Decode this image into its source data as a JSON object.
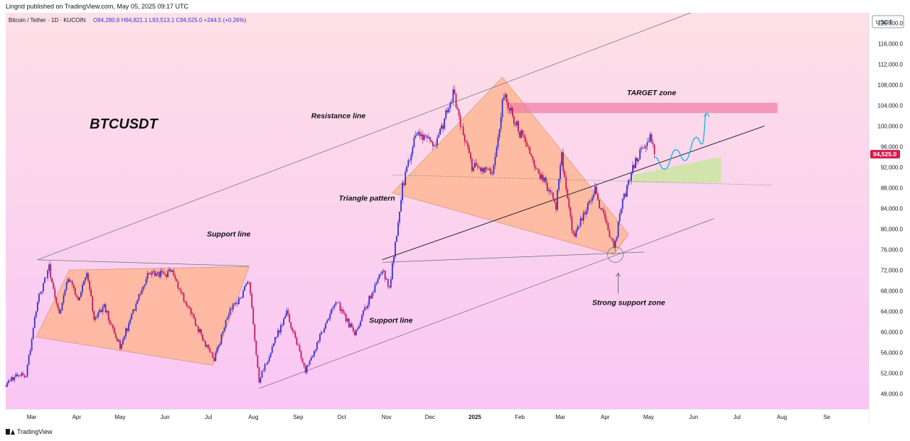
{
  "header": {
    "published": "Lingrid published on TradingView.com, May 05, 2025 09:17 UTC"
  },
  "colors": {
    "up": "#3a2fd1",
    "down": "#c2185b",
    "price_badge": "#d81b4c",
    "triangle_fill": "#ffb38a",
    "target_fill": "#f07aa6",
    "green_zone": "#c8e6a0",
    "projection": "#19b7e6",
    "bg_top": "#fde0e6",
    "bg_bottom": "#f9c6f5"
  },
  "chart_data": {
    "type": "candlestick",
    "symbol_line": "Bitcoin / Tether · 1D · KUCOIN",
    "ohlc_line": "O94,280.6  H94,821.1  L93,513.1  C94,525.0  +244.5 (+0.26%)",
    "currency": "USDT",
    "last_price": "94,525.0",
    "ylim": [
      45000,
      122000
    ],
    "xlim": [
      "2024-02-12",
      "2025-09-30"
    ],
    "y_ticks": [
      "120,000.0",
      "116,000.0",
      "112,000.0",
      "108,000.0",
      "104,000.0",
      "100,000.0",
      "96,000.0",
      "92,000.0",
      "88,000.0",
      "84,000.0",
      "80,000.0",
      "76,000.0",
      "72,000.0",
      "68,000.0",
      "64,000.0",
      "60,000.0",
      "56,000.0",
      "52,000.0",
      "48,000.0"
    ],
    "x_ticks": [
      {
        "label": "Mar",
        "date": "2024-03-01"
      },
      {
        "label": "Apr",
        "date": "2024-04-01"
      },
      {
        "label": "May",
        "date": "2024-05-01"
      },
      {
        "label": "Jun",
        "date": "2024-06-01"
      },
      {
        "label": "Jul",
        "date": "2024-07-01"
      },
      {
        "label": "Aug",
        "date": "2024-08-01"
      },
      {
        "label": "Sep",
        "date": "2024-09-01"
      },
      {
        "label": "Oct",
        "date": "2024-10-01"
      },
      {
        "label": "Nov",
        "date": "2024-11-01"
      },
      {
        "label": "Dec",
        "date": "2024-12-01"
      },
      {
        "label": "2025",
        "date": "2025-01-01"
      },
      {
        "label": "Feb",
        "date": "2025-02-01"
      },
      {
        "label": "Mar",
        "date": "2025-03-01"
      },
      {
        "label": "Apr",
        "date": "2025-04-01"
      },
      {
        "label": "May",
        "date": "2025-05-01"
      },
      {
        "label": "Jun",
        "date": "2025-06-01"
      },
      {
        "label": "Jul",
        "date": "2025-07-01"
      },
      {
        "label": "Aug",
        "date": "2025-08-01"
      },
      {
        "label": "Se",
        "date": "2025-09-01"
      }
    ],
    "price_path": [
      [
        "2024-02-12",
        49500
      ],
      [
        "2024-02-20",
        51800
      ],
      [
        "2024-02-26",
        51500
      ],
      [
        "2024-03-05",
        66000
      ],
      [
        "2024-03-13",
        72500
      ],
      [
        "2024-03-20",
        63000
      ],
      [
        "2024-03-26",
        70500
      ],
      [
        "2024-04-02",
        65800
      ],
      [
        "2024-04-08",
        71500
      ],
      [
        "2024-04-13",
        63000
      ],
      [
        "2024-04-20",
        64800
      ],
      [
        "2024-05-01",
        57200
      ],
      [
        "2024-05-20",
        71000
      ],
      [
        "2024-06-06",
        71500
      ],
      [
        "2024-06-24",
        60500
      ],
      [
        "2024-07-05",
        54500
      ],
      [
        "2024-07-15",
        63500
      ],
      [
        "2024-07-29",
        69500
      ],
      [
        "2024-08-05",
        50500
      ],
      [
        "2024-08-24",
        64000
      ],
      [
        "2024-09-06",
        52600
      ],
      [
        "2024-09-27",
        66000
      ],
      [
        "2024-10-10",
        59500
      ],
      [
        "2024-10-29",
        72500
      ],
      [
        "2024-11-03",
        68300
      ],
      [
        "2024-11-12",
        88000
      ],
      [
        "2024-11-22",
        99000
      ],
      [
        "2024-12-05",
        96000
      ],
      [
        "2024-12-17",
        106500
      ],
      [
        "2024-12-30",
        92000
      ],
      [
        "2025-01-13",
        91000
      ],
      [
        "2025-01-21",
        106000
      ],
      [
        "2025-02-03",
        97500
      ],
      [
        "2025-02-26",
        84500
      ],
      [
        "2025-03-02",
        94000
      ],
      [
        "2025-03-10",
        78500
      ],
      [
        "2025-03-25",
        87500
      ],
      [
        "2025-04-07",
        76000
      ],
      [
        "2025-04-12",
        84000
      ],
      [
        "2025-04-22",
        93500
      ],
      [
        "2025-05-02",
        97500
      ],
      [
        "2025-05-05",
        94525
      ]
    ],
    "trendlines": [
      {
        "name": "resistance-line",
        "from": [
          "2024-03-05",
          74000
        ],
        "to": [
          "2025-05-30",
          122000
        ]
      },
      {
        "name": "support-line-lower",
        "from": [
          "2024-08-05",
          49000
        ],
        "to": [
          "2025-06-15",
          82000
        ]
      },
      {
        "name": "support-line-upper",
        "from": [
          "2024-03-05",
          74000
        ],
        "to": [
          "2024-07-29",
          72800
        ]
      },
      {
        "name": "inner-support",
        "from": [
          "2024-10-29",
          74000
        ],
        "to": [
          "2025-07-20",
          100000
        ]
      },
      {
        "name": "flat-support",
        "from": [
          "2024-10-29",
          73500
        ],
        "to": [
          "2025-04-28",
          75500
        ]
      },
      {
        "name": "dotted-level",
        "from": [
          "2024-11-05",
          90500
        ],
        "to": [
          "2025-07-25",
          88500
        ]
      }
    ],
    "shapes": {
      "left_triangle": [
        [
          "2024-03-04",
          59000
        ],
        [
          "2024-03-27",
          72000
        ],
        [
          "2024-07-29",
          72700
        ],
        [
          "2024-07-04",
          53500
        ]
      ],
      "big_triangle": [
        [
          "2024-11-05",
          87000
        ],
        [
          "2025-01-20",
          109500
        ],
        [
          "2025-04-17",
          79000
        ],
        [
          "2025-04-07",
          75000
        ]
      ],
      "target_zone": {
        "from": "2025-01-23",
        "to": "2025-07-29",
        "top": 104500,
        "bottom": 102500
      },
      "green_zone": [
        [
          "2025-04-20",
          90500
        ],
        [
          "2025-06-20",
          94000
        ],
        [
          "2025-06-20",
          89000
        ],
        [
          "2025-04-20",
          89000
        ]
      ],
      "circle": {
        "date": "2025-04-08",
        "price": 75000
      },
      "projection": [
        [
          "2025-05-05",
          94000
        ],
        [
          "2025-05-12",
          91600
        ],
        [
          "2025-05-20",
          95400
        ],
        [
          "2025-05-26",
          93300
        ],
        [
          "2025-06-03",
          97800
        ],
        [
          "2025-06-07",
          96500
        ],
        [
          "2025-06-10",
          102500
        ]
      ]
    },
    "annotations": [
      {
        "name": "btcusdt",
        "text": "BTCUSDT",
        "date": "2024-04-10",
        "price": 99500,
        "size": "big"
      },
      {
        "name": "resistance-line",
        "text": "Resistance line",
        "date": "2024-09-10",
        "price": 101500
      },
      {
        "name": "triangle-pattern",
        "text": "Triangle pattern",
        "date": "2024-09-29",
        "price": 85500
      },
      {
        "name": "support-line-upper",
        "text": "Support line",
        "date": "2024-06-30",
        "price": 78500
      },
      {
        "name": "support-line-lower",
        "text": "Support line",
        "date": "2024-10-20",
        "price": 61800
      },
      {
        "name": "target-zone",
        "text": "TARGET zone",
        "date": "2025-04-16",
        "price": 106000
      },
      {
        "name": "strong-support-zone",
        "text": "Strong support zone",
        "date": "2025-03-23",
        "price": 65200
      }
    ]
  },
  "footer": {
    "brand": "TradingView"
  }
}
